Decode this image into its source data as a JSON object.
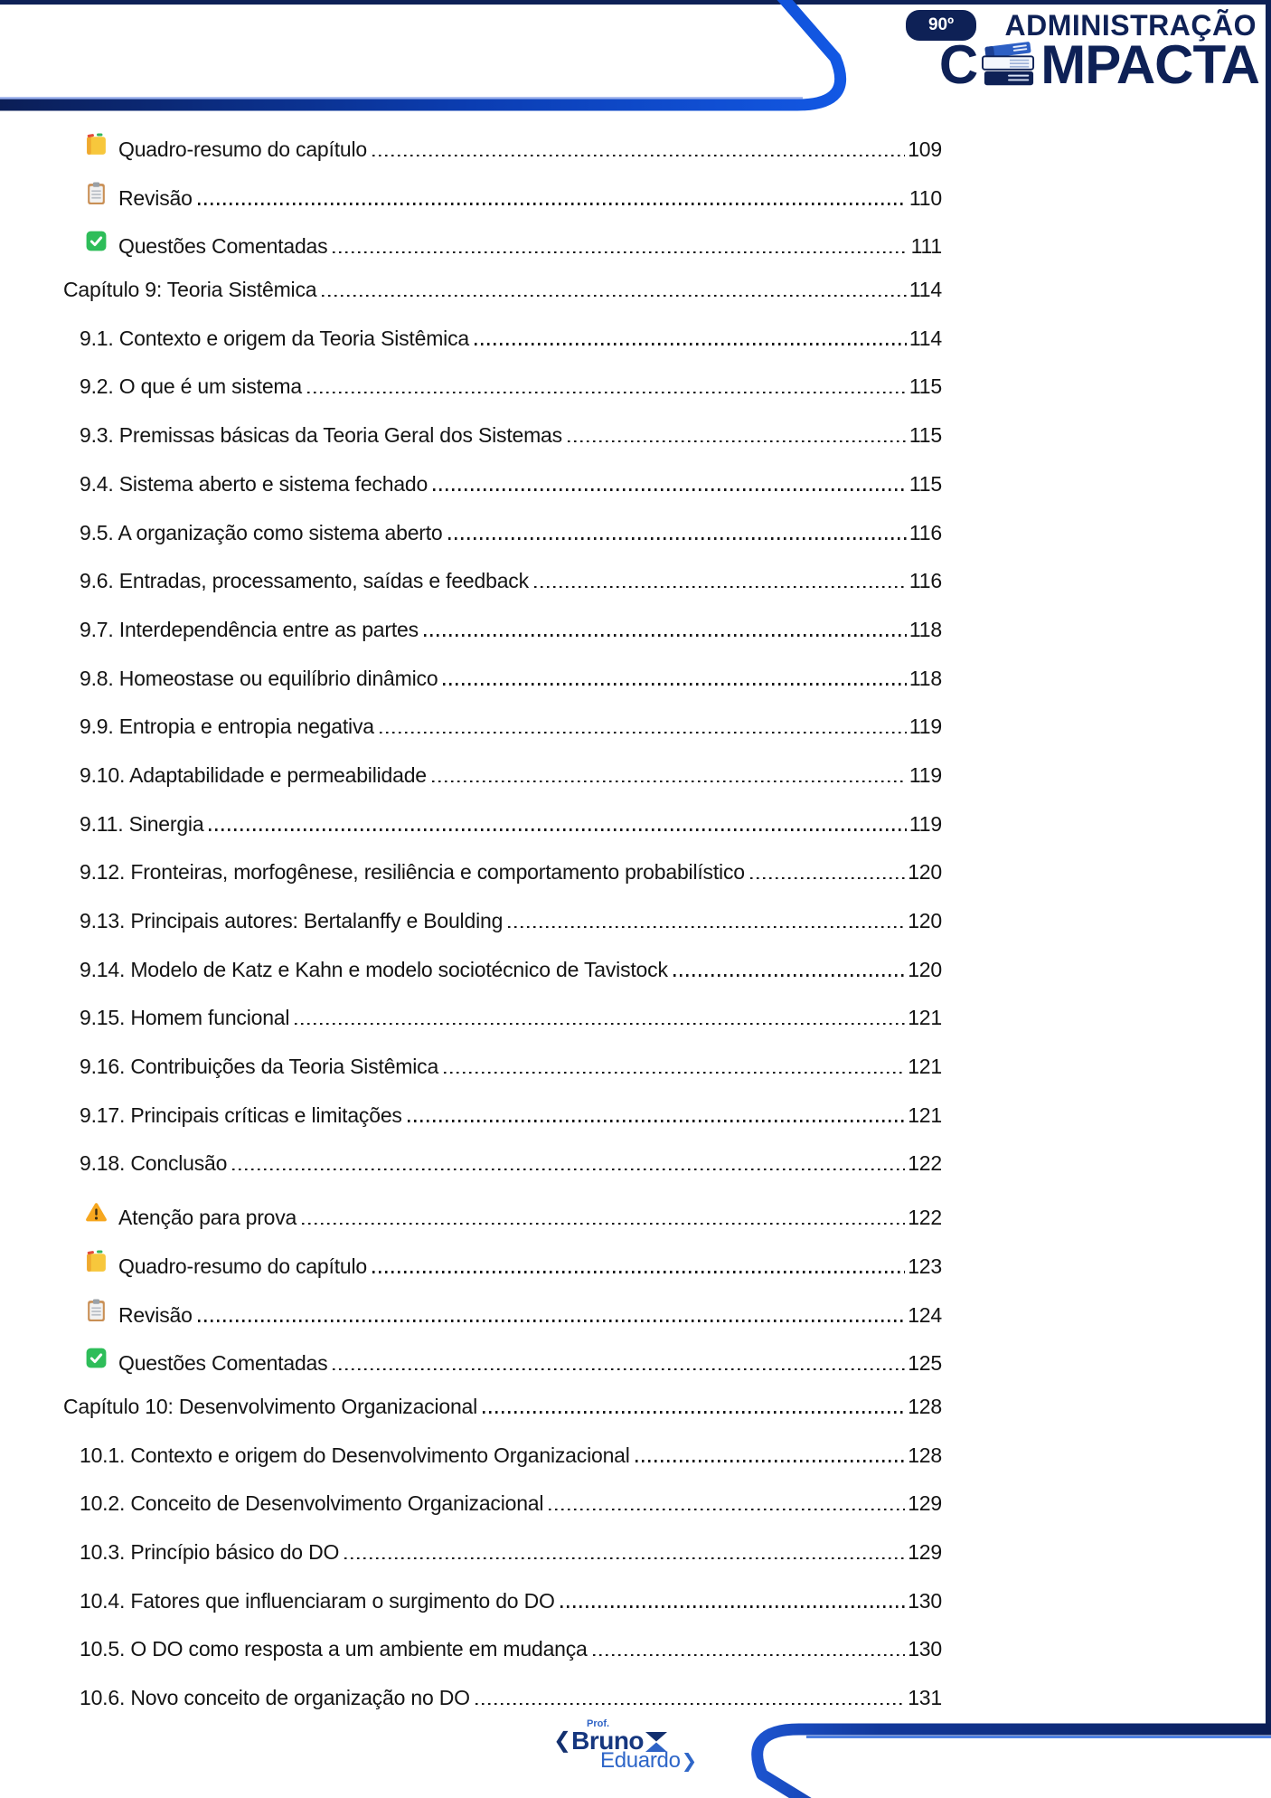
{
  "header": {
    "badge_label": "90º",
    "brand_line1": "ADMINISTRAÇÃO",
    "brand_line2_prefix": "C",
    "brand_line2_suffix": "MPACTA"
  },
  "toc": {
    "entries": [
      {
        "type": "iconrow",
        "icon": "note-icon",
        "label": "Quadro-resumo do capítulo",
        "page": "109"
      },
      {
        "type": "iconrow",
        "icon": "clipboard-icon",
        "label": "Revisão",
        "page": "110"
      },
      {
        "type": "iconrow",
        "icon": "check-icon",
        "label": "Questões Comentadas",
        "page": "111"
      },
      {
        "type": "chapter",
        "label": "Capítulo 9: Teoria Sistêmica",
        "page": "114"
      },
      {
        "type": "section",
        "label": "9.1. Contexto e origem da Teoria Sistêmica",
        "page": "114"
      },
      {
        "type": "section",
        "label": "9.2. O que é um sistema",
        "page": "115"
      },
      {
        "type": "section",
        "label": "9.3. Premissas básicas da Teoria Geral dos Sistemas",
        "page": "115"
      },
      {
        "type": "section",
        "label": "9.4. Sistema aberto e sistema fechado",
        "page": "115"
      },
      {
        "type": "section",
        "label": "9.5. A organização como sistema aberto",
        "page": "116"
      },
      {
        "type": "section",
        "label": "9.6. Entradas, processamento, saídas e feedback",
        "page": "116"
      },
      {
        "type": "section",
        "label": "9.7. Interdependência entre as partes",
        "page": "118"
      },
      {
        "type": "section",
        "label": "9.8. Homeostase ou equilíbrio dinâmico",
        "page": "118"
      },
      {
        "type": "section",
        "label": "9.9. Entropia e entropia negativa",
        "page": "119"
      },
      {
        "type": "section",
        "label": "9.10. Adaptabilidade e permeabilidade",
        "page": "119"
      },
      {
        "type": "section",
        "label": "9.11. Sinergia",
        "page": "119"
      },
      {
        "type": "section",
        "label": "9.12. Fronteiras, morfogênese, resiliência e comportamento probabilístico",
        "page": "120"
      },
      {
        "type": "section",
        "label": "9.13. Principais autores: Bertalanffy e Boulding",
        "page": "120"
      },
      {
        "type": "section",
        "label": "9.14. Modelo de Katz e Kahn e modelo sociotécnico de Tavistock",
        "page": "120"
      },
      {
        "type": "section",
        "label": "9.15. Homem funcional",
        "page": "121"
      },
      {
        "type": "section",
        "label": "9.16. Contribuições da Teoria Sistêmica",
        "page": "121"
      },
      {
        "type": "section",
        "label": "9.17. Principais críticas e limitações",
        "page": "121"
      },
      {
        "type": "section",
        "label": "9.18. Conclusão",
        "page": "122"
      },
      {
        "type": "iconrow",
        "icon": "warning-icon",
        "label": "Atenção para prova",
        "page": "122"
      },
      {
        "type": "iconrow",
        "icon": "note-icon",
        "label": "Quadro-resumo do capítulo",
        "page": "123"
      },
      {
        "type": "iconrow",
        "icon": "clipboard-icon",
        "label": "Revisão",
        "page": "124"
      },
      {
        "type": "iconrow",
        "icon": "check-icon",
        "label": "Questões Comentadas",
        "page": "125"
      },
      {
        "type": "chapter",
        "label": "Capítulo 10: Desenvolvimento Organizacional",
        "page": "128"
      },
      {
        "type": "section",
        "label": "10.1. Contexto e origem do Desenvolvimento Organizacional",
        "page": "128"
      },
      {
        "type": "section",
        "label": "10.2. Conceito de Desenvolvimento Organizacional",
        "page": "129"
      },
      {
        "type": "section",
        "label": "10.3. Princípio básico do DO",
        "page": "129"
      },
      {
        "type": "section",
        "label": "10.4. Fatores que influenciaram o surgimento do DO",
        "page": "130"
      },
      {
        "type": "section",
        "label": "10.5. O DO como resposta a um ambiente em mudança",
        "page": "130"
      },
      {
        "type": "section",
        "label": "10.6. Novo conceito de organização no DO",
        "page": "131"
      }
    ]
  },
  "footer": {
    "prof": "Prof.",
    "first_name": "Bruno",
    "last_name": "Eduardo"
  },
  "colors": {
    "navy": "#0e2156",
    "bright_blue": "#1359e6",
    "text": "#141414",
    "note_yellow": "#F7C73C",
    "check_green": "#2EBD59",
    "warning_orange": "#F6A71F",
    "clipboard_tan": "#C98F55"
  }
}
